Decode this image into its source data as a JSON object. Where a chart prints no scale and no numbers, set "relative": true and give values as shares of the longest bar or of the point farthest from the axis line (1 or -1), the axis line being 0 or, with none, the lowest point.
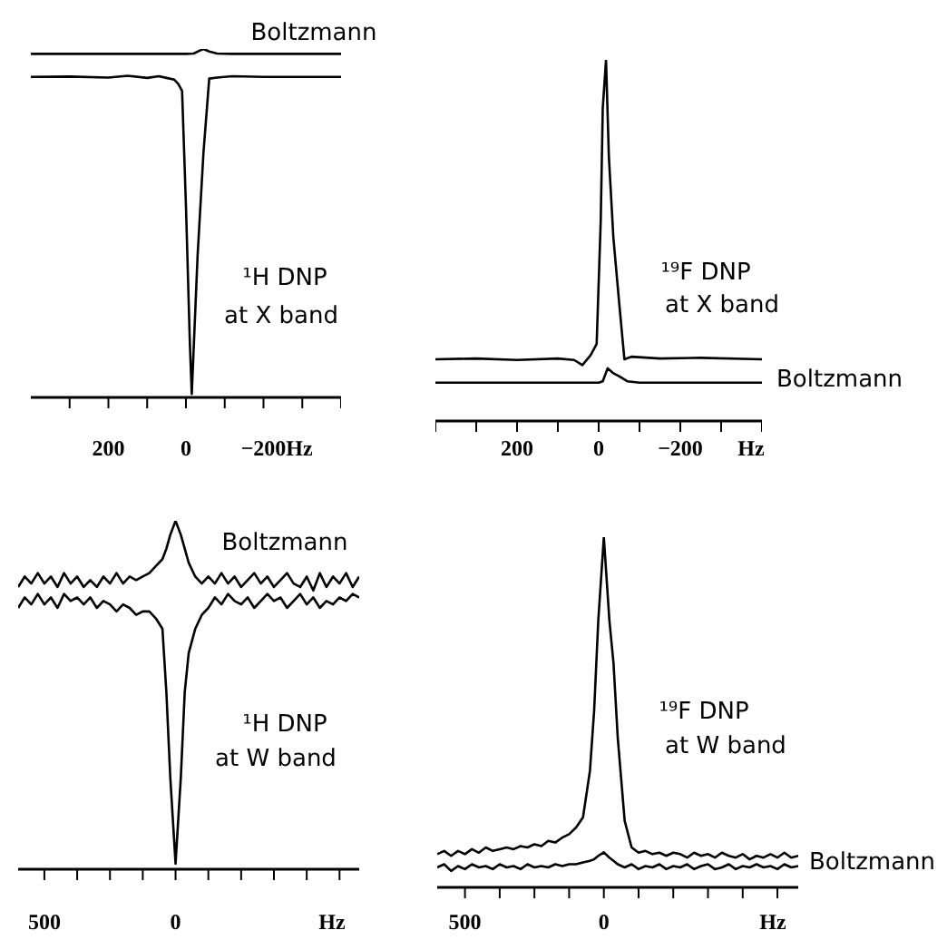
{
  "chart_data": [
    {
      "type": "line",
      "relative": true,
      "marker": "none",
      "xlabel": "Hz",
      "xlim": [
        400,
        -400
      ],
      "xticks": [
        {
          "value": 300,
          "label": null
        },
        200,
        {
          "value": 100,
          "label": null
        },
        0,
        {
          "value": -100,
          "label": null
        },
        -200,
        {
          "value": -300,
          "label": null
        },
        {
          "value": -400,
          "label": null
        }
      ],
      "annotations": [
        "¹H DNP",
        "at X band"
      ],
      "series": [
        {
          "name": "Boltzmann",
          "color": "#000000",
          "x": [
            400,
            300,
            200,
            100,
            50,
            0,
            -20,
            -35,
            -45,
            -60,
            -80,
            -120,
            -200,
            -300,
            -400
          ],
          "values": [
            0.986,
            0.986,
            0.986,
            0.986,
            0.986,
            0.986,
            0.987,
            0.995,
            1.0,
            0.993,
            0.987,
            0.986,
            0.986,
            0.986,
            0.986
          ]
        },
        {
          "color": "#000000",
          "x": [
            400,
            300,
            200,
            150,
            100,
            70,
            50,
            30,
            20,
            10,
            0,
            -10,
            -15,
            -30,
            -45,
            -60,
            -80,
            -120,
            -200,
            -300,
            -400
          ],
          "values": [
            0.92,
            0.921,
            0.918,
            0.923,
            0.917,
            0.922,
            0.917,
            0.912,
            0.9,
            0.88,
            0.55,
            0.159,
            0.01,
            0.406,
            0.7,
            0.915,
            0.918,
            0.922,
            0.92,
            0.92,
            0.92
          ]
        }
      ]
    },
    {
      "type": "line",
      "relative": true,
      "marker": "none",
      "xlabel": "Hz",
      "xlim": [
        400,
        -400
      ],
      "xticks": [
        {
          "value": 400,
          "label": null
        },
        {
          "value": 300,
          "label": null
        },
        200,
        {
          "value": 100,
          "label": null
        },
        0,
        {
          "value": -100,
          "label": null
        },
        -200,
        {
          "value": -300,
          "label": null
        },
        {
          "value": -400,
          "label": null
        }
      ],
      "annotations": [
        "¹⁹F DNP",
        "at X band"
      ],
      "series": [
        {
          "name": "Boltzmann",
          "color": "#000000",
          "x": [
            400,
            200,
            50,
            0,
            -10,
            -22,
            -35,
            -50,
            -70,
            -100,
            -200,
            -400
          ],
          "values": [
            0.106,
            0.106,
            0.106,
            0.106,
            0.11,
            0.146,
            0.133,
            0.124,
            0.11,
            0.106,
            0.106,
            0.106
          ]
        },
        {
          "color": "#000000",
          "x": [
            400,
            300,
            200,
            100,
            60,
            40,
            20,
            5,
            -5,
            -10,
            -18,
            -25,
            -36,
            -50,
            -63,
            -80,
            -150,
            -250,
            -400
          ],
          "values": [
            0.171,
            0.173,
            0.169,
            0.173,
            0.169,
            0.155,
            0.182,
            0.213,
            0.553,
            0.866,
            1,
            0.732,
            0.508,
            0.33,
            0.171,
            0.178,
            0.173,
            0.175,
            0.171
          ]
        }
      ]
    },
    {
      "type": "line",
      "relative": true,
      "marker": "none",
      "xlabel": "Hz",
      "xlim": [
        600,
        -700
      ],
      "xticks": [
        500,
        {
          "value": 375,
          "label": null
        },
        {
          "value": 250,
          "label": null
        },
        {
          "value": 125,
          "label": null
        },
        0,
        {
          "value": -125,
          "label": null
        },
        {
          "value": -250,
          "label": null
        },
        {
          "value": -375,
          "label": null
        },
        {
          "value": -500,
          "label": null
        },
        {
          "value": -625,
          "label": null
        }
      ],
      "annotations": [
        "¹H DNP",
        "at W band"
      ],
      "series": [
        {
          "name": "Boltzmann",
          "color": "#000000",
          "x": [
            600,
            575,
            550,
            525,
            500,
            475,
            450,
            425,
            400,
            375,
            350,
            325,
            300,
            275,
            250,
            225,
            200,
            175,
            150,
            125,
            100,
            75,
            50,
            35,
            20,
            0,
            -20,
            -35,
            -50,
            -75,
            -100,
            -125,
            -150,
            -175,
            -200,
            -225,
            -250,
            -275,
            -300,
            -325,
            -350,
            -375,
            -400,
            -425,
            -450,
            -475,
            -500,
            -525,
            -550,
            -575,
            -600,
            -625,
            -650,
            -675,
            -700
          ],
          "values": [
            0.81,
            0.84,
            0.82,
            0.85,
            0.82,
            0.84,
            0.81,
            0.85,
            0.82,
            0.84,
            0.81,
            0.83,
            0.81,
            0.84,
            0.82,
            0.85,
            0.82,
            0.84,
            0.83,
            0.84,
            0.85,
            0.87,
            0.89,
            0.92,
            0.96,
            1.0,
            0.96,
            0.92,
            0.88,
            0.84,
            0.82,
            0.84,
            0.82,
            0.85,
            0.82,
            0.84,
            0.81,
            0.83,
            0.85,
            0.82,
            0.84,
            0.81,
            0.83,
            0.85,
            0.82,
            0.81,
            0.84,
            0.8,
            0.85,
            0.81,
            0.84,
            0.82,
            0.85,
            0.81,
            0.84
          ]
        },
        {
          "color": "#000000",
          "x": [
            600,
            575,
            550,
            525,
            500,
            475,
            450,
            425,
            400,
            375,
            350,
            325,
            300,
            275,
            250,
            225,
            200,
            175,
            150,
            125,
            100,
            75,
            50,
            35,
            20,
            0,
            -20,
            -35,
            -50,
            -75,
            -100,
            -125,
            -150,
            -175,
            -200,
            -225,
            -250,
            -275,
            -300,
            -325,
            -350,
            -375,
            -400,
            -425,
            -450,
            -475,
            -500,
            -525,
            -550,
            -575,
            -600,
            -625,
            -650,
            -675,
            -700
          ],
          "values": [
            0.75,
            0.78,
            0.76,
            0.79,
            0.76,
            0.78,
            0.75,
            0.79,
            0.77,
            0.78,
            0.76,
            0.78,
            0.75,
            0.77,
            0.76,
            0.74,
            0.76,
            0.75,
            0.73,
            0.74,
            0.74,
            0.72,
            0.69,
            0.508,
            0.262,
            0.016,
            0.262,
            0.508,
            0.62,
            0.69,
            0.73,
            0.75,
            0.78,
            0.76,
            0.79,
            0.77,
            0.76,
            0.78,
            0.75,
            0.77,
            0.79,
            0.77,
            0.78,
            0.75,
            0.77,
            0.79,
            0.76,
            0.78,
            0.75,
            0.77,
            0.76,
            0.78,
            0.77,
            0.79,
            0.78
          ]
        }
      ]
    },
    {
      "type": "line",
      "relative": true,
      "marker": "none",
      "xlabel": "Hz",
      "xlim": [
        600,
        -700
      ],
      "xticks": [
        500,
        {
          "value": 375,
          "label": null
        },
        {
          "value": 250,
          "label": null
        },
        {
          "value": 125,
          "label": null
        },
        0,
        {
          "value": -125,
          "label": null
        },
        {
          "value": -250,
          "label": null
        },
        {
          "value": -375,
          "label": null
        },
        {
          "value": -500,
          "label": null
        },
        {
          "value": -625,
          "label": null
        }
      ],
      "annotations": [
        "¹⁹F DNP",
        "at W band"
      ],
      "series": [
        {
          "name": "Boltzmann",
          "color": "#000000",
          "x": [
            600,
            575,
            550,
            525,
            500,
            475,
            450,
            425,
            400,
            375,
            350,
            325,
            300,
            275,
            250,
            225,
            200,
            175,
            150,
            125,
            100,
            75,
            50,
            35,
            20,
            0,
            -20,
            -35,
            -50,
            -75,
            -100,
            -125,
            -150,
            -175,
            -200,
            -225,
            -250,
            -275,
            -300,
            -325,
            -350,
            -375,
            -400,
            -425,
            -450,
            -475,
            -500,
            -525,
            -550,
            -575,
            -600,
            -625,
            -650,
            -675,
            -700
          ],
          "values": [
            0.057,
            0.066,
            0.047,
            0.061,
            0.052,
            0.066,
            0.057,
            0.061,
            0.052,
            0.066,
            0.057,
            0.061,
            0.052,
            0.066,
            0.057,
            0.061,
            0.057,
            0.066,
            0.061,
            0.066,
            0.066,
            0.071,
            0.076,
            0.08,
            0.09,
            0.1,
            0.085,
            0.076,
            0.066,
            0.057,
            0.066,
            0.052,
            0.061,
            0.057,
            0.066,
            0.052,
            0.061,
            0.057,
            0.066,
            0.052,
            0.061,
            0.066,
            0.052,
            0.057,
            0.066,
            0.052,
            0.061,
            0.057,
            0.066,
            0.057,
            0.061,
            0.052,
            0.066,
            0.057,
            0.061
          ]
        },
        {
          "color": "#000000",
          "x": [
            600,
            575,
            550,
            525,
            500,
            475,
            450,
            425,
            400,
            375,
            350,
            325,
            300,
            275,
            250,
            225,
            200,
            175,
            150,
            125,
            100,
            75,
            50,
            35,
            20,
            0,
            -20,
            -35,
            -50,
            -75,
            -100,
            -125,
            -150,
            -175,
            -200,
            -225,
            -250,
            -275,
            -300,
            -325,
            -350,
            -375,
            -400,
            -425,
            -450,
            -475,
            -500,
            -525,
            -550,
            -575,
            -600,
            -625,
            -650,
            -675,
            -700
          ],
          "values": [
            0.095,
            0.104,
            0.09,
            0.104,
            0.095,
            0.109,
            0.099,
            0.114,
            0.104,
            0.109,
            0.114,
            0.109,
            0.118,
            0.114,
            0.123,
            0.118,
            0.133,
            0.128,
            0.142,
            0.152,
            0.171,
            0.2,
            0.333,
            0.504,
            0.762,
            1,
            0.762,
            0.638,
            0.428,
            0.19,
            0.114,
            0.099,
            0.104,
            0.095,
            0.099,
            0.09,
            0.099,
            0.095,
            0.085,
            0.099,
            0.09,
            0.095,
            0.085,
            0.099,
            0.09,
            0.085,
            0.095,
            0.08,
            0.09,
            0.085,
            0.095,
            0.085,
            0.099,
            0.085,
            0.09
          ]
        }
      ]
    }
  ]
}
